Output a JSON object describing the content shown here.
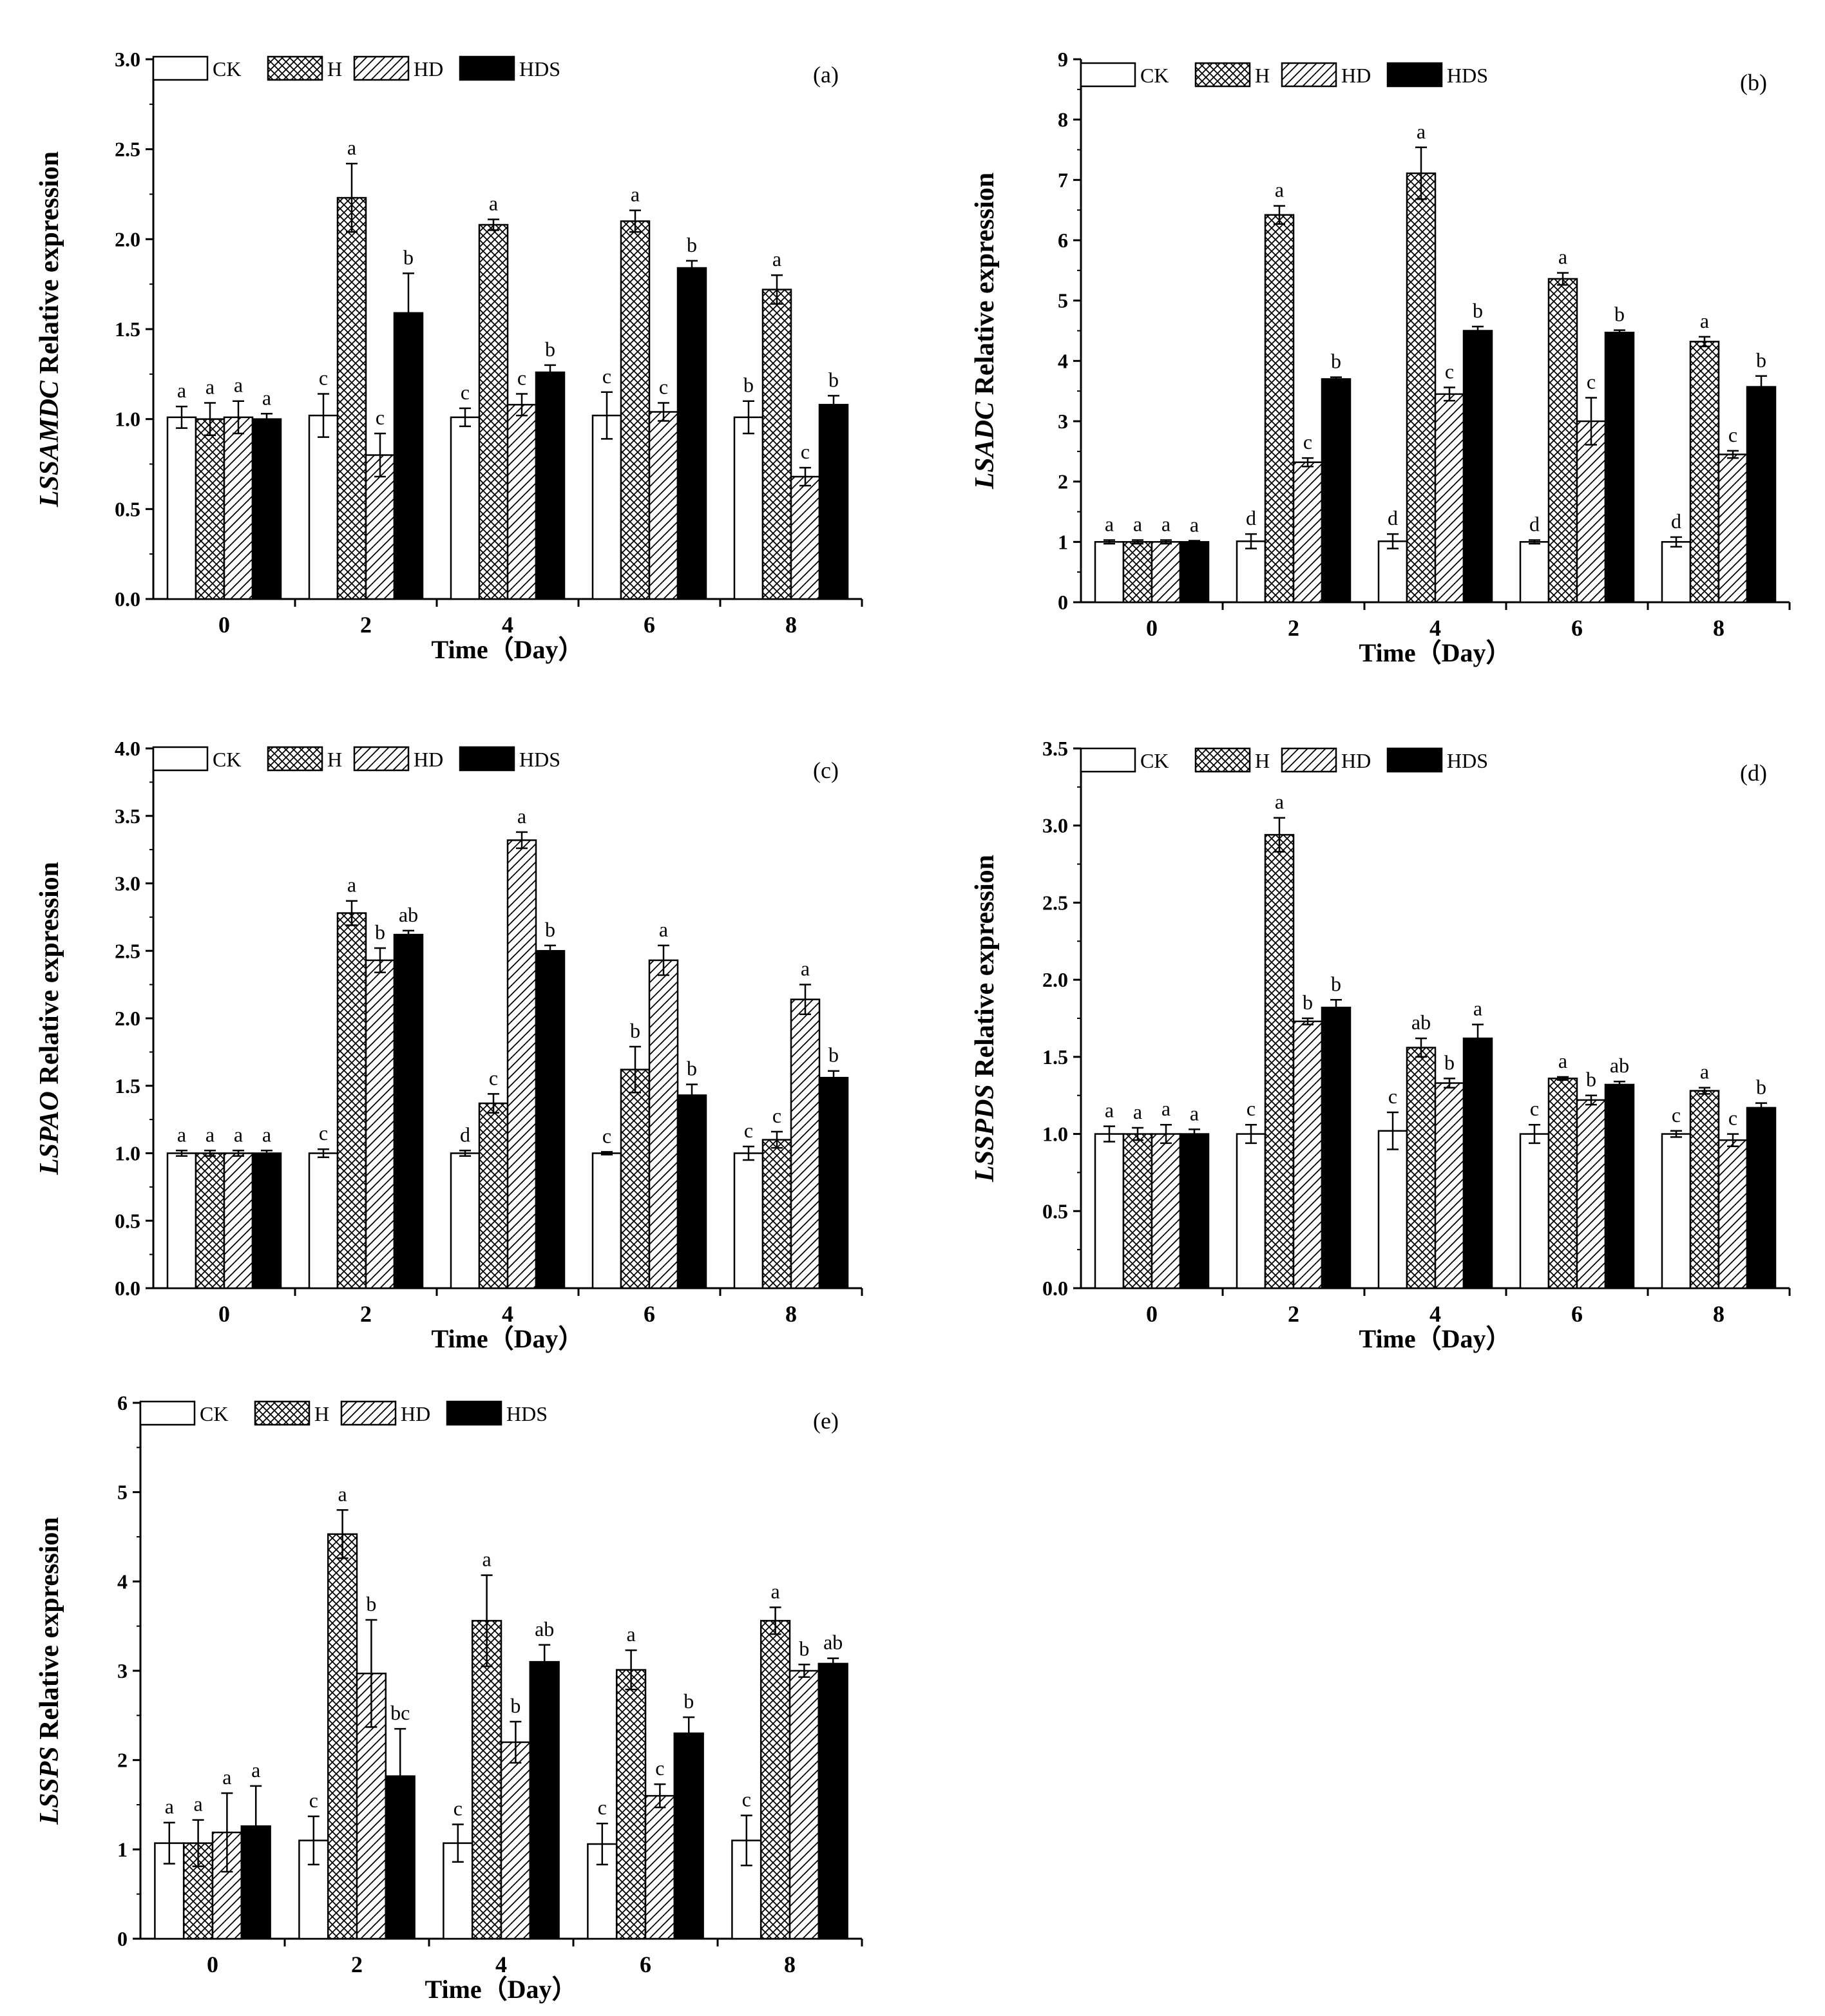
{
  "series": [
    "CK",
    "H",
    "HD",
    "HDS"
  ],
  "chart_data": [
    {
      "type": "bar",
      "panel_label": "(a)",
      "ylabel_gene": "LSSAMDC",
      "ylabel_rest": " Relative expression",
      "xlabel": "Time（Day）",
      "categories": [
        "0",
        "2",
        "4",
        "6",
        "8"
      ],
      "ylim": [
        0,
        3.0
      ],
      "yticks": [
        "0.0",
        "0.5",
        "1.0",
        "1.5",
        "2.0",
        "2.5",
        "3.0"
      ],
      "tick_values": [
        0,
        0.5,
        1.0,
        1.5,
        2.0,
        2.5,
        3.0
      ],
      "legend_position": "top-left",
      "series": [
        {
          "name": "CK",
          "values": [
            1.01,
            1.02,
            1.01,
            1.02,
            1.01
          ],
          "errors": [
            0.06,
            0.12,
            0.05,
            0.13,
            0.09
          ],
          "letters": [
            "a",
            "c",
            "c",
            "c",
            "b"
          ]
        },
        {
          "name": "H",
          "values": [
            1.0,
            2.23,
            2.08,
            2.1,
            1.72
          ],
          "errors": [
            0.09,
            0.19,
            0.03,
            0.06,
            0.08
          ],
          "letters": [
            "a",
            "a",
            "a",
            "a",
            "a"
          ]
        },
        {
          "name": "HD",
          "values": [
            1.01,
            0.8,
            1.08,
            1.04,
            0.68
          ],
          "errors": [
            0.09,
            0.12,
            0.06,
            0.05,
            0.05
          ],
          "letters": [
            "a",
            "c",
            "c",
            "c",
            "c"
          ]
        },
        {
          "name": "HDS",
          "values": [
            1.0,
            1.59,
            1.26,
            1.84,
            1.08
          ],
          "errors": [
            0.03,
            0.22,
            0.04,
            0.04,
            0.05
          ],
          "letters": [
            "a",
            "b",
            "b",
            "b",
            "b"
          ]
        }
      ]
    },
    {
      "type": "bar",
      "panel_label": "(b)",
      "ylabel_gene": "LSADC",
      "ylabel_rest": " Relative expression",
      "xlabel": "Time（Day）",
      "categories": [
        "0",
        "2",
        "4",
        "6",
        "8"
      ],
      "ylim": [
        0,
        9
      ],
      "yticks": [
        "0",
        "1",
        "2",
        "3",
        "4",
        "5",
        "6",
        "7",
        "8",
        "9"
      ],
      "tick_values": [
        0,
        1,
        2,
        3,
        4,
        5,
        6,
        7,
        8,
        9
      ],
      "legend_position": "top-left",
      "series": [
        {
          "name": "CK",
          "values": [
            1.0,
            1.01,
            1.01,
            1.0,
            1.0
          ],
          "errors": [
            0.03,
            0.12,
            0.12,
            0.03,
            0.08
          ],
          "letters": [
            "a",
            "d",
            "d",
            "d",
            "d"
          ]
        },
        {
          "name": "H",
          "values": [
            1.0,
            6.42,
            7.11,
            5.36,
            4.32
          ],
          "errors": [
            0.03,
            0.15,
            0.43,
            0.1,
            0.08
          ],
          "letters": [
            "a",
            "a",
            "a",
            "a",
            "a"
          ]
        },
        {
          "name": "HD",
          "values": [
            1.0,
            2.32,
            3.45,
            3.0,
            2.45
          ],
          "errors": [
            0.03,
            0.07,
            0.11,
            0.39,
            0.06
          ],
          "letters": [
            "a",
            "c",
            "c",
            "c",
            "c"
          ]
        },
        {
          "name": "HDS",
          "values": [
            1.0,
            3.7,
            4.5,
            4.47,
            3.57
          ],
          "errors": [
            0.02,
            0.03,
            0.07,
            0.04,
            0.18
          ],
          "letters": [
            "a",
            "b",
            "b",
            "b",
            "b"
          ]
        }
      ]
    },
    {
      "type": "bar",
      "panel_label": "(c)",
      "ylabel_gene": "LSPAO",
      "ylabel_rest": " Relative expression",
      "xlabel": "Time（Day）",
      "categories": [
        "0",
        "2",
        "4",
        "6",
        "8"
      ],
      "ylim": [
        0,
        4.0
      ],
      "yticks": [
        "0.0",
        "0.5",
        "1.0",
        "1.5",
        "2.0",
        "2.5",
        "3.0",
        "3.5",
        "4.0"
      ],
      "tick_values": [
        0,
        0.5,
        1.0,
        1.5,
        2.0,
        2.5,
        3.0,
        3.5,
        4.0
      ],
      "legend_position": "top-left",
      "series": [
        {
          "name": "CK",
          "values": [
            1.0,
            1.0,
            1.0,
            1.0,
            1.0
          ],
          "errors": [
            0.02,
            0.03,
            0.02,
            0.01,
            0.05
          ],
          "letters": [
            "a",
            "c",
            "d",
            "c",
            "c"
          ]
        },
        {
          "name": "H",
          "values": [
            1.0,
            2.78,
            1.37,
            1.62,
            1.1
          ],
          "errors": [
            0.02,
            0.09,
            0.07,
            0.17,
            0.06
          ],
          "letters": [
            "a",
            "a",
            "c",
            "b",
            "c"
          ]
        },
        {
          "name": "HD",
          "values": [
            1.0,
            2.43,
            3.32,
            2.43,
            2.14
          ],
          "errors": [
            0.02,
            0.09,
            0.06,
            0.11,
            0.11
          ],
          "letters": [
            "a",
            "b",
            "a",
            "a",
            "a"
          ]
        },
        {
          "name": "HDS",
          "values": [
            1.0,
            2.62,
            2.5,
            1.43,
            1.56
          ],
          "errors": [
            0.02,
            0.03,
            0.04,
            0.08,
            0.05
          ],
          "letters": [
            "a",
            "ab",
            "b",
            "b",
            "b"
          ]
        }
      ]
    },
    {
      "type": "bar",
      "panel_label": "(d)",
      "ylabel_gene": "LSSPDS",
      "ylabel_rest": " Relative expression",
      "xlabel": "Time（Day）",
      "categories": [
        "0",
        "2",
        "4",
        "6",
        "8"
      ],
      "ylim": [
        0,
        3.5
      ],
      "yticks": [
        "0.0",
        "0.5",
        "1.0",
        "1.5",
        "2.0",
        "2.5",
        "3.0",
        "3.5"
      ],
      "tick_values": [
        0,
        0.5,
        1.0,
        1.5,
        2.0,
        2.5,
        3.0,
        3.5
      ],
      "legend_position": "top-left",
      "series": [
        {
          "name": "CK",
          "values": [
            1.0,
            1.0,
            1.02,
            1.0,
            1.0
          ],
          "errors": [
            0.05,
            0.06,
            0.12,
            0.06,
            0.02
          ],
          "letters": [
            "a",
            "c",
            "c",
            "c",
            "c"
          ]
        },
        {
          "name": "H",
          "values": [
            1.0,
            2.94,
            1.56,
            1.36,
            1.28
          ],
          "errors": [
            0.04,
            0.11,
            0.06,
            0.01,
            0.02
          ],
          "letters": [
            "a",
            "a",
            "ab",
            "a",
            "a"
          ]
        },
        {
          "name": "HD",
          "values": [
            1.0,
            1.73,
            1.33,
            1.22,
            0.96
          ],
          "errors": [
            0.06,
            0.02,
            0.03,
            0.03,
            0.04
          ],
          "letters": [
            "a",
            "b",
            "b",
            "b",
            "c"
          ]
        },
        {
          "name": "HDS",
          "values": [
            1.0,
            1.82,
            1.62,
            1.32,
            1.17
          ],
          "errors": [
            0.03,
            0.05,
            0.09,
            0.02,
            0.03
          ],
          "letters": [
            "a",
            "b",
            "a",
            "ab",
            "b"
          ]
        }
      ]
    },
    {
      "type": "bar",
      "panel_label": "(e)",
      "ylabel_gene": "LSSPS",
      "ylabel_rest": " Relative expression",
      "xlabel": "Time（Day）",
      "categories": [
        "0",
        "2",
        "4",
        "6",
        "8"
      ],
      "ylim": [
        0,
        6
      ],
      "yticks": [
        "0",
        "1",
        "2",
        "3",
        "4",
        "5",
        "6"
      ],
      "tick_values": [
        0,
        1,
        2,
        3,
        4,
        5,
        6
      ],
      "legend_position": "top-left",
      "series": [
        {
          "name": "CK",
          "values": [
            1.07,
            1.1,
            1.07,
            1.06,
            1.1
          ],
          "errors": [
            0.23,
            0.27,
            0.21,
            0.23,
            0.28
          ],
          "letters": [
            "a",
            "c",
            "c",
            "c",
            "c"
          ]
        },
        {
          "name": "H",
          "values": [
            1.07,
            4.53,
            3.56,
            3.01,
            3.56
          ],
          "errors": [
            0.26,
            0.27,
            0.51,
            0.22,
            0.15
          ],
          "letters": [
            "a",
            "a",
            "a",
            "a",
            "a"
          ]
        },
        {
          "name": "HD",
          "values": [
            1.19,
            2.97,
            2.2,
            1.6,
            3.0
          ],
          "errors": [
            0.44,
            0.6,
            0.23,
            0.13,
            0.07
          ],
          "letters": [
            "a",
            "b",
            "b",
            "c",
            "b"
          ]
        },
        {
          "name": "HDS",
          "values": [
            1.26,
            1.82,
            3.1,
            2.3,
            3.08
          ],
          "errors": [
            0.45,
            0.53,
            0.19,
            0.18,
            0.06
          ],
          "letters": [
            "a",
            "bc",
            "ab",
            "b",
            "ab"
          ]
        }
      ]
    }
  ]
}
